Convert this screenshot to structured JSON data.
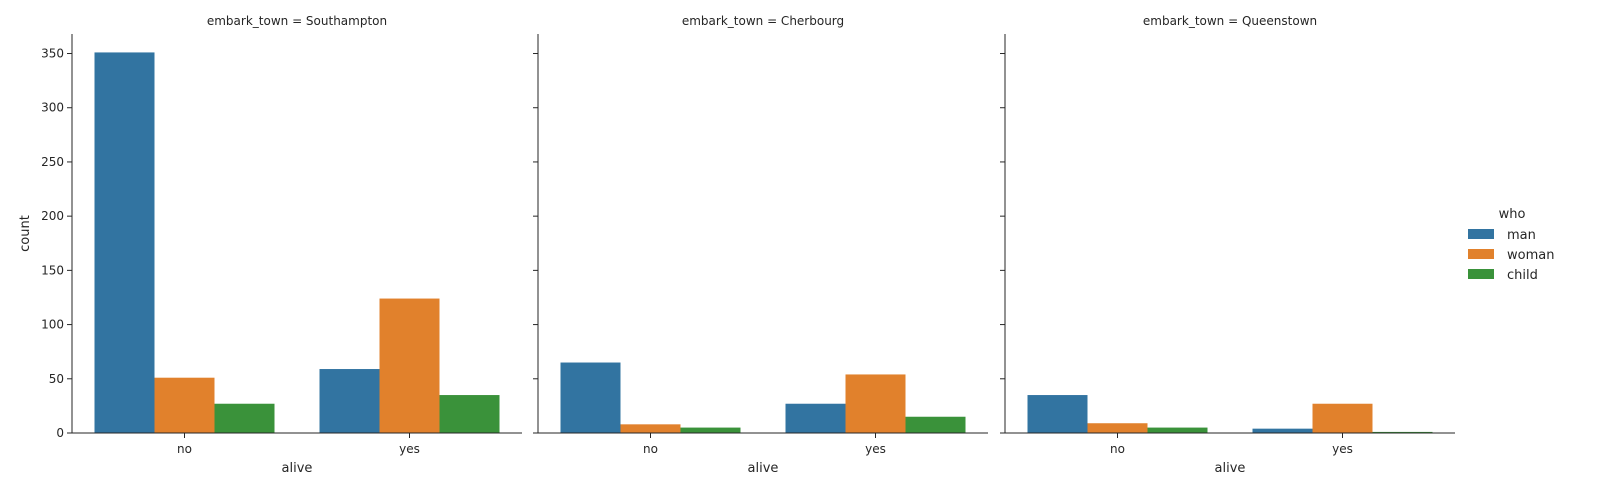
{
  "chart_data": {
    "type": "bar",
    "x_label": "alive",
    "y_label": "count",
    "categories": [
      "no",
      "yes"
    ],
    "y_ticks": [
      0,
      50,
      100,
      150,
      200,
      250,
      300,
      350
    ],
    "ylim": [
      0,
      368
    ],
    "legend": {
      "title": "who",
      "placement": "right",
      "entries": [
        {
          "label": "man",
          "color": "#3274a1"
        },
        {
          "label": "woman",
          "color": "#e1812c"
        },
        {
          "label": "child",
          "color": "#3a923a"
        }
      ]
    },
    "panels": [
      {
        "title": "embark_town = Southampton",
        "series": [
          {
            "name": "man",
            "values": [
              351,
              59
            ]
          },
          {
            "name": "woman",
            "values": [
              51,
              124
            ]
          },
          {
            "name": "child",
            "values": [
              27,
              35
            ]
          }
        ]
      },
      {
        "title": "embark_town = Cherbourg",
        "series": [
          {
            "name": "man",
            "values": [
              65,
              27
            ]
          },
          {
            "name": "woman",
            "values": [
              8,
              54
            ]
          },
          {
            "name": "child",
            "values": [
              5,
              15
            ]
          }
        ]
      },
      {
        "title": "embark_town = Queenstown",
        "series": [
          {
            "name": "man",
            "values": [
              35,
              4
            ]
          },
          {
            "name": "woman",
            "values": [
              9,
              27
            ]
          },
          {
            "name": "child",
            "values": [
              5,
              1
            ]
          }
        ]
      }
    ]
  }
}
